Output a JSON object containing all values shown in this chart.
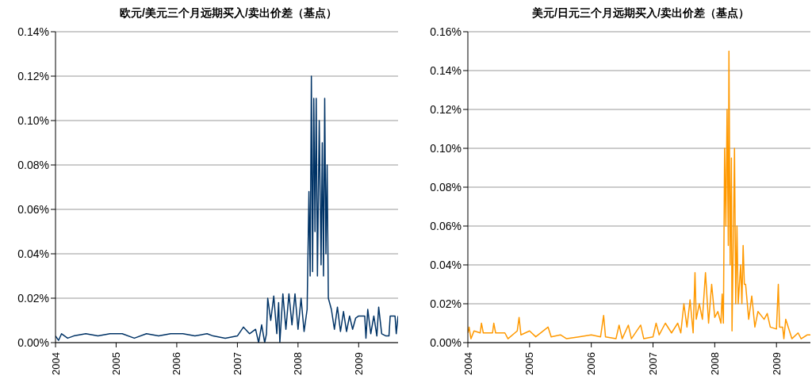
{
  "chart_data": [
    {
      "type": "line",
      "title": "欧元/美元三个月远期买入/卖出价差（基点）",
      "xlim": [
        2004,
        2009.65
      ],
      "xticks": [
        2004,
        2005,
        2006,
        2007,
        2008,
        2009
      ],
      "ylim": [
        0,
        0.14
      ],
      "yticks": [
        {
          "value": 0,
          "label": "0.00%"
        },
        {
          "value": 0.02,
          "label": "0.02%"
        },
        {
          "value": 0.04,
          "label": "0.04%"
        },
        {
          "value": 0.06,
          "label": "0.06%"
        },
        {
          "value": 0.08,
          "label": "0.08%"
        },
        {
          "value": 0.1,
          "label": "0.10%"
        },
        {
          "value": 0.12,
          "label": "0.12%"
        },
        {
          "value": 0.14,
          "label": "0.14%"
        }
      ],
      "grid": "y",
      "series": [
        {
          "color": "#003366",
          "x": [
            2004.0,
            2004.05,
            2004.1,
            2004.2,
            2004.3,
            2004.5,
            2004.7,
            2004.9,
            2005.1,
            2005.3,
            2005.5,
            2005.7,
            2005.9,
            2006.1,
            2006.3,
            2006.5,
            2006.6,
            2006.8,
            2007.0,
            2007.1,
            2007.2,
            2007.3,
            2007.35,
            2007.4,
            2007.45,
            2007.48,
            2007.5,
            2007.55,
            2007.6,
            2007.65,
            2007.68,
            2007.7,
            2007.75,
            2007.8,
            2007.85,
            2007.9,
            2007.95,
            2008.0,
            2008.05,
            2008.1,
            2008.15,
            2008.18,
            2008.2,
            2008.22,
            2008.24,
            2008.26,
            2008.28,
            2008.3,
            2008.32,
            2008.35,
            2008.38,
            2008.4,
            2008.42,
            2008.44,
            2008.46,
            2008.48,
            2008.5,
            2008.55,
            2008.6,
            2008.65,
            2008.7,
            2008.75,
            2008.8,
            2008.85,
            2008.9,
            2008.95,
            2009.0,
            2009.1,
            2009.12,
            2009.15,
            2009.2,
            2009.25,
            2009.3,
            2009.33,
            2009.38,
            2009.45,
            2009.5,
            2009.52,
            2009.6,
            2009.62,
            2009.65
          ],
          "values": [
            0.003,
            0.001,
            0.004,
            0.002,
            0.003,
            0.004,
            0.003,
            0.004,
            0.004,
            0.002,
            0.004,
            0.003,
            0.004,
            0.004,
            0.003,
            0.004,
            0.003,
            0.002,
            0.003,
            0.007,
            0.004,
            0.006,
            0,
            0.008,
            0,
            0.004,
            0.02,
            0.01,
            0.021,
            0.004,
            0.018,
            0,
            0.022,
            0.006,
            0.022,
            0.008,
            0.022,
            0.006,
            0.02,
            0.005,
            0.015,
            0.068,
            0.03,
            0.12,
            0.032,
            0.11,
            0.05,
            0.11,
            0.03,
            0.1,
            0.035,
            0.09,
            0.03,
            0.11,
            0.04,
            0.08,
            0.02,
            0.015,
            0.006,
            0.016,
            0.005,
            0.014,
            0.005,
            0.012,
            0.006,
            0.011,
            0.012,
            0.012,
            0.002,
            0.015,
            0.004,
            0.012,
            0.003,
            0.016,
            0.004,
            0.003,
            0.003,
            0.012,
            0.012,
            0.004,
            0.012
          ]
        }
      ]
    },
    {
      "type": "line",
      "title": "美元/日元三个月远期买入/卖出价差（基点）",
      "xlim": [
        2004,
        2009.55
      ],
      "xticks": [
        2004,
        2005,
        2006,
        2007,
        2008,
        2009
      ],
      "ylim": [
        0,
        0.16
      ],
      "yticks": [
        {
          "value": 0,
          "label": "0.00%"
        },
        {
          "value": 0.02,
          "label": "0.02%"
        },
        {
          "value": 0.04,
          "label": "0.04%"
        },
        {
          "value": 0.06,
          "label": "0.06%"
        },
        {
          "value": 0.08,
          "label": "0.08%"
        },
        {
          "value": 0.1,
          "label": "0.10%"
        },
        {
          "value": 0.12,
          "label": "0.12%"
        },
        {
          "value": 0.14,
          "label": "0.14%"
        },
        {
          "value": 0.16,
          "label": "0.16%"
        }
      ],
      "grid": "y",
      "series": [
        {
          "color": "#ff9900",
          "x": [
            2004.0,
            2004.02,
            2004.05,
            2004.1,
            2004.2,
            2004.22,
            2004.25,
            2004.4,
            2004.42,
            2004.45,
            2004.6,
            2004.65,
            2004.8,
            2004.83,
            2004.86,
            2005.0,
            2005.1,
            2005.3,
            2005.35,
            2005.5,
            2005.6,
            2005.8,
            2006.0,
            2006.15,
            2006.2,
            2006.23,
            2006.4,
            2006.45,
            2006.5,
            2006.6,
            2006.65,
            2006.8,
            2006.85,
            2007.0,
            2007.05,
            2007.1,
            2007.2,
            2007.3,
            2007.4,
            2007.45,
            2007.5,
            2007.55,
            2007.6,
            2007.65,
            2007.68,
            2007.7,
            2007.75,
            2007.8,
            2007.85,
            2007.9,
            2007.95,
            2008.0,
            2008.05,
            2008.1,
            2008.12,
            2008.14,
            2008.16,
            2008.18,
            2008.2,
            2008.22,
            2008.23,
            2008.25,
            2008.27,
            2008.28,
            2008.3,
            2008.32,
            2008.34,
            2008.36,
            2008.38,
            2008.42,
            2008.44,
            2008.46,
            2008.48,
            2008.5,
            2008.55,
            2008.6,
            2008.65,
            2008.7,
            2008.8,
            2008.85,
            2008.9,
            2009.0,
            2009.03,
            2009.05,
            2009.1,
            2009.12,
            2009.15,
            2009.2,
            2009.25,
            2009.35,
            2009.4,
            2009.5,
            2009.55
          ],
          "values": [
            0.005,
            0.008,
            0.002,
            0.006,
            0.005,
            0.01,
            0.005,
            0.005,
            0.01,
            0.005,
            0.005,
            0.002,
            0.006,
            0.013,
            0.004,
            0.006,
            0.003,
            0.008,
            0.003,
            0.004,
            0.002,
            0.003,
            0.004,
            0.003,
            0.014,
            0.003,
            0.002,
            0.009,
            0.002,
            0.009,
            0.002,
            0.009,
            0.002,
            0.003,
            0.01,
            0.004,
            0.01,
            0.005,
            0.01,
            0.005,
            0.02,
            0.008,
            0.022,
            0.005,
            0.036,
            0.012,
            0.02,
            0.012,
            0.036,
            0.01,
            0.03,
            0.013,
            0.016,
            0.01,
            0.025,
            0.01,
            0.1,
            0.06,
            0.12,
            0.05,
            0.15,
            0.04,
            0.095,
            0.006,
            0.05,
            0.1,
            0.02,
            0.06,
            0.02,
            0.04,
            0.02,
            0.05,
            0.03,
            0.03,
            0.012,
            0.024,
            0.008,
            0.016,
            0.012,
            0.015,
            0.008,
            0.007,
            0.03,
            0.008,
            0.008,
            0.002,
            0.012,
            0.007,
            0.002,
            0.005,
            0.002,
            0.004,
            0.004
          ]
        }
      ]
    }
  ]
}
